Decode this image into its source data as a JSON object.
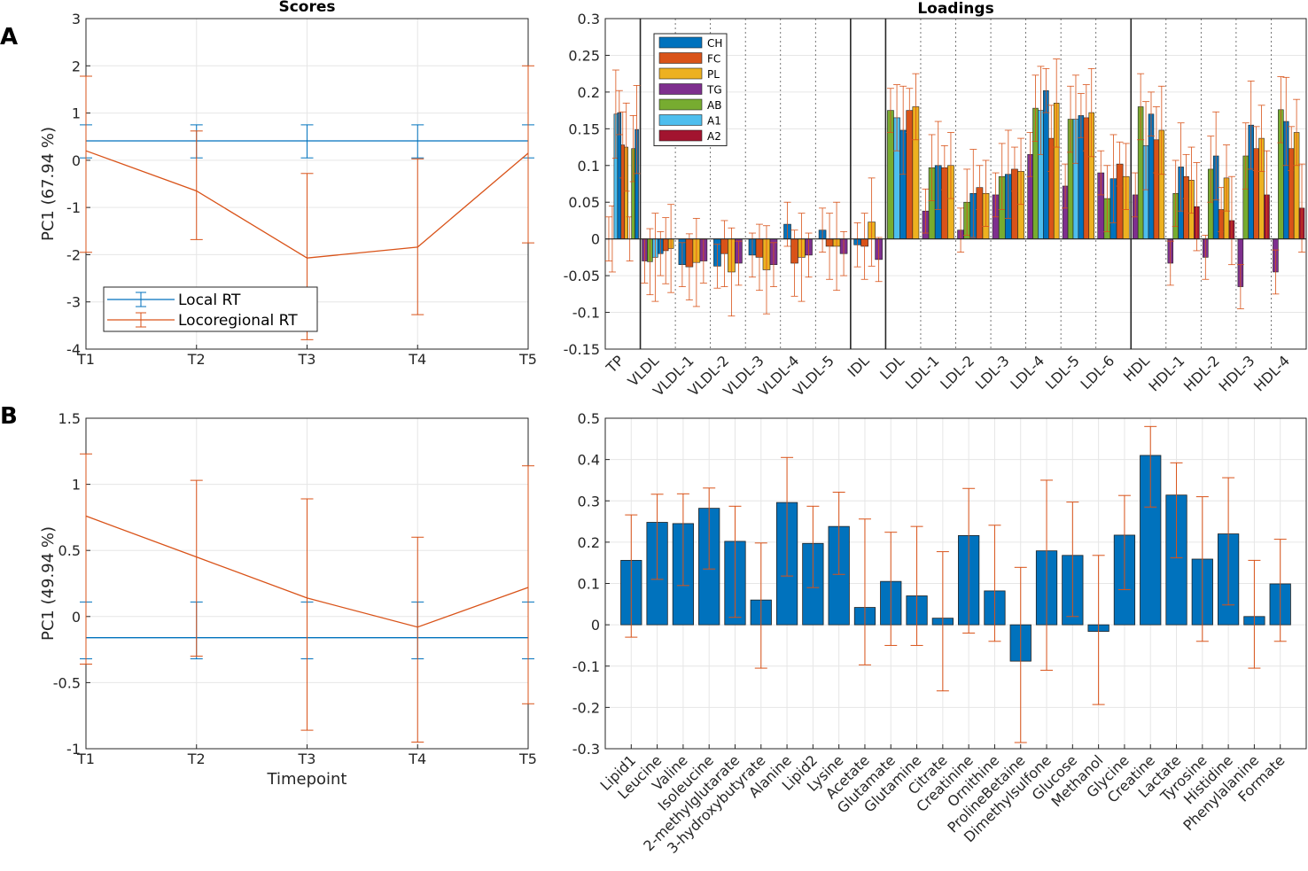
{
  "panels": {
    "a": "A",
    "b": "B"
  },
  "colors": {
    "blue": "#0072BD",
    "orange": "#D95319",
    "yellow": "#EDB120",
    "purple": "#7E2F8E",
    "green": "#77AC30",
    "cyan": "#4DBEEE",
    "red": "#A2142F",
    "grid": "#e6e6e6",
    "axis": "#262626"
  },
  "chart_data": [
    {
      "id": "scores_a",
      "type": "line",
      "title": "Scores",
      "ylabel": "PC1 (67.94 %)",
      "xlabel": "",
      "categories": [
        "T1",
        "T2",
        "T3",
        "T4",
        "T5"
      ],
      "ylim": [
        -4,
        3
      ],
      "yticks": [
        "3",
        "2",
        "1",
        "0",
        "-1",
        "-2",
        "-3",
        "-4"
      ],
      "ytick_values": [
        3,
        2,
        1,
        0,
        -1,
        -2,
        -3,
        -4
      ],
      "grid": true,
      "legend_position": "bottom-left",
      "series": [
        {
          "name": "Local RT",
          "color": "#0072BD",
          "values": [
            0.41,
            0.41,
            0.41,
            0.41,
            0.41
          ],
          "err_low": [
            0.05,
            0.05,
            0.05,
            0.05,
            0.05
          ],
          "err_high": [
            0.75,
            0.75,
            0.75,
            0.75,
            0.75
          ]
        },
        {
          "name": "Locoregional RT",
          "color": "#D95319",
          "values": [
            0.2,
            -0.65,
            -2.07,
            -1.84,
            0.15
          ],
          "err_low": [
            -1.95,
            -1.68,
            -3.8,
            -3.27,
            -1.75
          ],
          "err_high": [
            1.78,
            0.62,
            -0.28,
            0.03,
            2.0
          ]
        }
      ]
    },
    {
      "id": "loadings_a",
      "type": "bar",
      "title": "Loadings",
      "ylim": [
        -0.15,
        0.3
      ],
      "yticks": [
        "0.3",
        "0.25",
        "0.2",
        "0.15",
        "0.1",
        "0.05",
        "0",
        "-0.05",
        "-0.1",
        "-0.15"
      ],
      "ytick_values": [
        0.3,
        0.25,
        0.2,
        0.15,
        0.1,
        0.05,
        0,
        -0.05,
        -0.1,
        -0.15
      ],
      "grid": true,
      "legend_position": "top-left",
      "legend": [
        {
          "name": "CH",
          "color": "#0072BD"
        },
        {
          "name": "FC",
          "color": "#D95319"
        },
        {
          "name": "PL",
          "color": "#EDB120"
        },
        {
          "name": "TG",
          "color": "#7E2F8E"
        },
        {
          "name": "AB",
          "color": "#77AC30"
        },
        {
          "name": "A1",
          "color": "#4DBEEE"
        },
        {
          "name": "A2",
          "color": "#A2142F"
        }
      ],
      "groups": [
        {
          "name": "TP",
          "series": [
            "TG",
            "AB",
            "A1",
            "CH",
            "FC",
            "PL",
            "TG",
            "AB",
            "CH"
          ],
          "values": [
            0.0,
            0.0,
            0.17,
            0.172,
            0.128,
            0.125,
            0.0,
            0.123,
            0.149
          ]
        },
        {
          "name": "VLDL",
          "series": [
            "TG",
            "AB",
            "A1",
            "CH",
            "FC",
            "PL"
          ],
          "values": [
            -0.03,
            -0.031,
            -0.025,
            -0.02,
            -0.016,
            -0.013
          ]
        },
        {
          "name": "VLDL-1",
          "series": [
            "CH",
            "FC",
            "PL",
            "TG"
          ],
          "values": [
            -0.035,
            -0.038,
            -0.032,
            -0.03
          ]
        },
        {
          "name": "VLDL-2",
          "series": [
            "CH",
            "FC",
            "PL",
            "TG"
          ],
          "values": [
            -0.037,
            -0.02,
            -0.045,
            -0.033
          ]
        },
        {
          "name": "VLDL-3",
          "series": [
            "CH",
            "FC",
            "PL",
            "TG"
          ],
          "values": [
            -0.022,
            -0.025,
            -0.042,
            -0.035
          ]
        },
        {
          "name": "VLDL-4",
          "series": [
            "CH",
            "FC",
            "PL",
            "TG"
          ],
          "values": [
            0.02,
            -0.033,
            -0.025,
            -0.022
          ]
        },
        {
          "name": "VLDL-5",
          "series": [
            "CH",
            "FC",
            "PL",
            "TG"
          ],
          "values": [
            0.012,
            -0.01,
            -0.01,
            -0.02
          ]
        },
        {
          "name": "IDL",
          "series": [
            "CH",
            "FC",
            "PL",
            "TG"
          ],
          "values": [
            -0.008,
            -0.01,
            0.023,
            -0.028
          ]
        },
        {
          "name": "LDL",
          "series": [
            "AB",
            "A1",
            "CH",
            "FC",
            "PL"
          ],
          "values": [
            0.175,
            0.165,
            0.148,
            0.175,
            0.18
          ]
        },
        {
          "name": "LDL-1",
          "series": [
            "TG",
            "AB",
            "CH",
            "FC",
            "PL"
          ],
          "values": [
            0.038,
            0.097,
            0.1,
            0.097,
            0.1
          ]
        },
        {
          "name": "LDL-2",
          "series": [
            "TG",
            "AB",
            "CH",
            "FC",
            "PL"
          ],
          "values": [
            0.012,
            0.05,
            0.062,
            0.07,
            0.062
          ]
        },
        {
          "name": "LDL-3",
          "series": [
            "TG",
            "AB",
            "CH",
            "FC",
            "PL"
          ],
          "values": [
            0.06,
            0.085,
            0.088,
            0.095,
            0.092
          ]
        },
        {
          "name": "LDL-4",
          "series": [
            "TG",
            "AB",
            "A1",
            "CH",
            "FC",
            "PL"
          ],
          "values": [
            0.115,
            0.178,
            0.175,
            0.202,
            0.137,
            0.185
          ]
        },
        {
          "name": "LDL-5",
          "series": [
            "TG",
            "AB",
            "A1",
            "CH",
            "FC",
            "PL"
          ],
          "values": [
            0.072,
            0.163,
            0.163,
            0.168,
            0.165,
            0.172
          ]
        },
        {
          "name": "LDL-6",
          "series": [
            "TG",
            "AB",
            "CH",
            "FC",
            "PL"
          ],
          "values": [
            0.09,
            0.055,
            0.082,
            0.102,
            0.085
          ]
        },
        {
          "name": "HDL",
          "series": [
            "TG",
            "AB",
            "A1",
            "CH",
            "FC",
            "PL"
          ],
          "values": [
            0.06,
            0.18,
            0.127,
            0.17,
            0.135,
            0.148
          ]
        },
        {
          "name": "HDL-1",
          "series": [
            "TG",
            "AB",
            "CH",
            "FC",
            "PL",
            "A2"
          ],
          "values": [
            -0.033,
            0.062,
            0.098,
            0.085,
            0.08,
            0.044
          ]
        },
        {
          "name": "HDL-2",
          "series": [
            "TG",
            "AB",
            "CH",
            "FC",
            "PL",
            "A2"
          ],
          "values": [
            -0.025,
            0.095,
            0.113,
            0.04,
            0.083,
            0.025
          ]
        },
        {
          "name": "HDL-3",
          "series": [
            "TG",
            "AB",
            "CH",
            "FC",
            "PL",
            "A2"
          ],
          "values": [
            -0.065,
            0.113,
            0.155,
            0.123,
            0.137,
            0.06
          ]
        },
        {
          "name": "HDL-4",
          "series": [
            "TG",
            "AB",
            "CH",
            "FC",
            "PL",
            "A2"
          ],
          "values": [
            -0.045,
            0.176,
            0.16,
            0.123,
            0.145,
            0.042
          ]
        }
      ],
      "xtick_labels": [
        "TP",
        "VLDL",
        "VLDL-1",
        "VLDL-2",
        "VLDL-3",
        "VLDL-4",
        "VLDL-5",
        "IDL",
        "LDL",
        "LDL-1",
        "LDL-2",
        "LDL-3",
        "LDL-4",
        "LDL-5",
        "LDL-6",
        "HDL",
        "HDL-1",
        "HDL-2",
        "HDL-3",
        "HDL-4"
      ]
    },
    {
      "id": "scores_b",
      "type": "line",
      "title": "",
      "ylabel": "PC1 (49.94 %)",
      "xlabel": "Timepoint",
      "categories": [
        "T1",
        "T2",
        "T3",
        "T4",
        "T5"
      ],
      "ylim": [
        -1,
        1.5
      ],
      "yticks": [
        "1.5",
        "1",
        "0.5",
        "0",
        "-0.5",
        "-1"
      ],
      "ytick_values": [
        1.5,
        1,
        0.5,
        0,
        -0.5,
        -1
      ],
      "grid": true,
      "series": [
        {
          "name": "Local RT",
          "color": "#0072BD",
          "values": [
            -0.16,
            -0.16,
            -0.16,
            -0.16,
            -0.16
          ],
          "err_low": [
            -0.32,
            -0.32,
            -0.32,
            -0.32,
            -0.32
          ],
          "err_high": [
            0.11,
            0.11,
            0.11,
            0.11,
            0.11
          ]
        },
        {
          "name": "Locoregional RT",
          "color": "#D95319",
          "values": [
            0.76,
            0.45,
            0.14,
            -0.08,
            0.22
          ],
          "err_low": [
            -0.36,
            -0.3,
            -0.86,
            -0.95,
            -0.66
          ],
          "err_high": [
            1.23,
            1.03,
            0.89,
            0.6,
            1.14
          ]
        }
      ]
    },
    {
      "id": "loadings_b",
      "type": "bar",
      "title": "",
      "ylim": [
        -0.3,
        0.5
      ],
      "yticks": [
        "0.5",
        "0.4",
        "0.3",
        "0.2",
        "0.1",
        "0",
        "-0.1",
        "-0.2",
        "-0.3"
      ],
      "ytick_values": [
        0.5,
        0.4,
        0.3,
        0.2,
        0.1,
        0,
        -0.1,
        -0.2,
        -0.3
      ],
      "grid": true,
      "categories": [
        "Lipid1",
        "Leucine",
        "Valine",
        "Isoleucine",
        "2-methylglutarate",
        "3-hydroxybutyrate",
        "Alanine",
        "Lipid2",
        "Lysine",
        "Acetate",
        "Glutamate",
        "Glutamine",
        "Citrate",
        "Creatinine",
        "Ornithine",
        "ProlineBetaine",
        "Dimethylsulfone",
        "Glucose",
        "Methanol",
        "Glycine",
        "Creatine",
        "Lactate",
        "Tyrosine",
        "Histidine",
        "Phenylalanine",
        "Formate"
      ],
      "values": [
        0.156,
        0.248,
        0.245,
        0.282,
        0.202,
        0.06,
        0.296,
        0.197,
        0.238,
        0.042,
        0.105,
        0.07,
        0.016,
        0.216,
        0.082,
        -0.088,
        0.179,
        0.168,
        -0.016,
        0.217,
        0.41,
        0.314,
        0.159,
        0.22,
        0.02,
        0.099
      ],
      "err_low": [
        -0.03,
        0.11,
        0.095,
        0.135,
        0.018,
        -0.105,
        0.118,
        0.09,
        0.122,
        -0.097,
        -0.05,
        -0.05,
        -0.16,
        -0.02,
        -0.04,
        -0.285,
        -0.11,
        0.02,
        -0.193,
        0.085,
        0.285,
        0.162,
        -0.04,
        0.048,
        -0.105,
        -0.04
      ],
      "err_high": [
        0.266,
        0.316,
        0.317,
        0.331,
        0.287,
        0.198,
        0.405,
        0.287,
        0.321,
        0.256,
        0.224,
        0.238,
        0.177,
        0.33,
        0.241,
        0.139,
        0.35,
        0.297,
        0.168,
        0.313,
        0.48,
        0.392,
        0.31,
        0.356,
        0.156,
        0.207
      ]
    }
  ]
}
